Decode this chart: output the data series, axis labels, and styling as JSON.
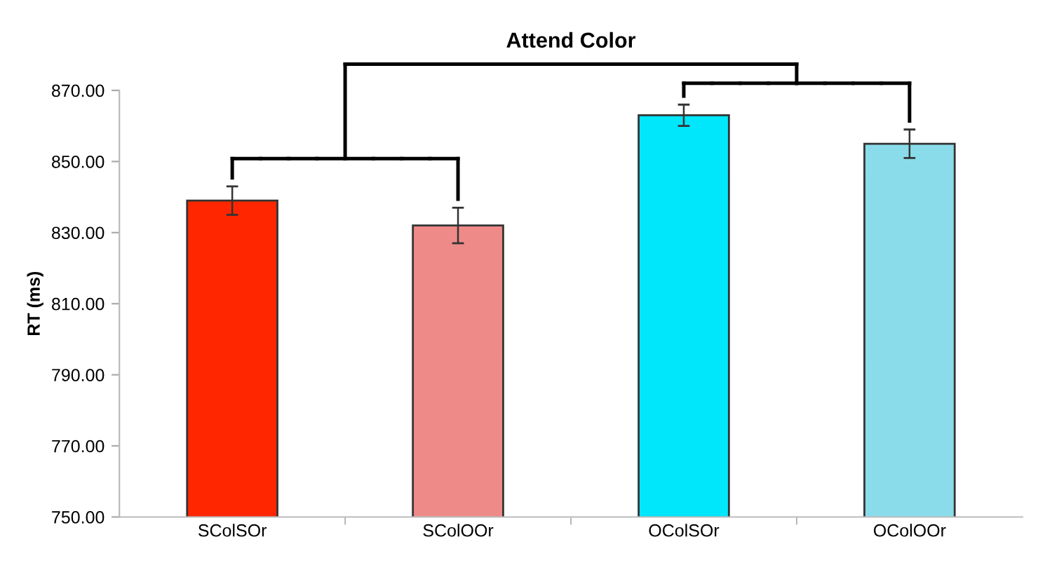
{
  "chart_data": {
    "type": "bar",
    "title": "Attend Color",
    "ylabel": "RT (ms)",
    "categories": [
      "SColSOr",
      "SColOOr",
      "OColSOr",
      "OColOOr"
    ],
    "values": [
      839,
      832,
      863,
      855
    ],
    "errors": [
      4,
      5,
      3,
      4
    ],
    "colors": [
      "#ff2600",
      "#ee8a88",
      "#00e6fa",
      "#8adcea"
    ],
    "ylim": [
      750,
      870
    ],
    "yticks": [
      {
        "value": 750,
        "label": "750.00"
      },
      {
        "value": 770,
        "label": "770.00"
      },
      {
        "value": 790,
        "label": "790.00"
      },
      {
        "value": 810,
        "label": "810.00"
      },
      {
        "value": 830,
        "label": "830.00"
      },
      {
        "value": 850,
        "label": "850.00"
      },
      {
        "value": 870,
        "label": "870.00"
      }
    ],
    "grid": false
  }
}
